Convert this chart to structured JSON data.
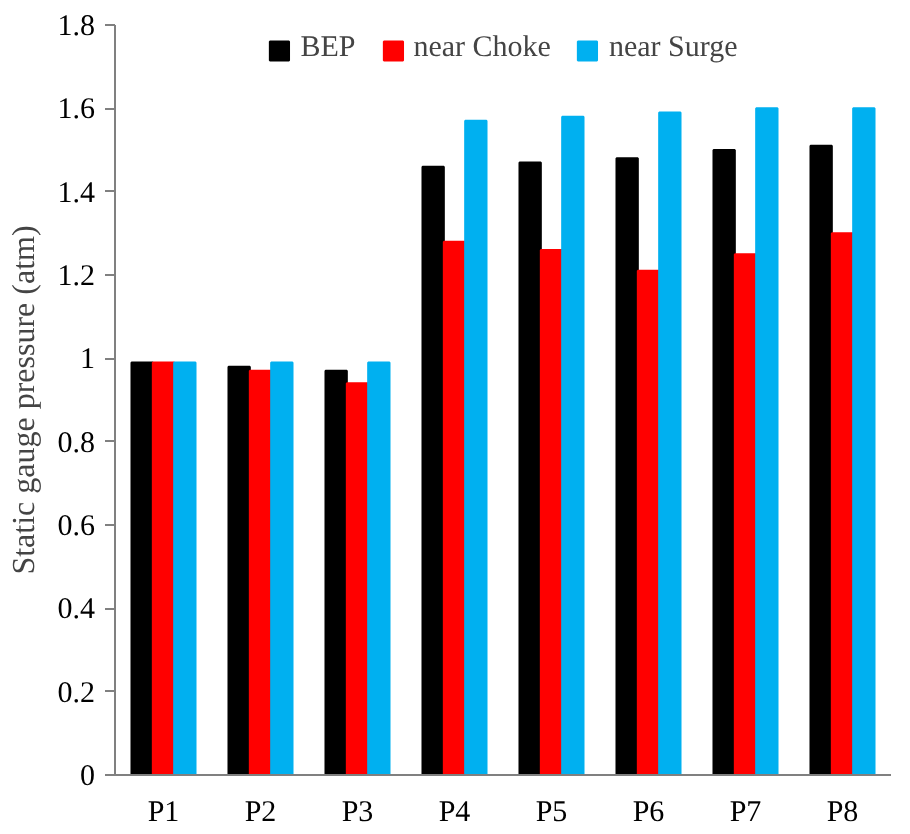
{
  "chart_data": {
    "type": "bar",
    "ylabel": "Static gauge pressure (atm)",
    "categories": [
      "P1",
      "P2",
      "P3",
      "P4",
      "P5",
      "P6",
      "P7",
      "P8"
    ],
    "series": [
      {
        "name": "BEP",
        "color": "#000000",
        "values": [
          0.99,
          0.98,
          0.97,
          1.46,
          1.47,
          1.48,
          1.5,
          1.51
        ]
      },
      {
        "name": "near Choke",
        "color": "#ff0000",
        "values": [
          0.99,
          0.97,
          0.94,
          1.28,
          1.26,
          1.21,
          1.25,
          1.3
        ]
      },
      {
        "name": "near Surge",
        "color": "#00b0f0",
        "values": [
          0.99,
          0.99,
          0.99,
          1.57,
          1.58,
          1.59,
          1.6,
          1.6
        ]
      }
    ],
    "ylim": [
      0,
      1.8
    ],
    "yticks": [
      0,
      0.2,
      0.4,
      0.6,
      0.8,
      1,
      1.2,
      1.4,
      1.6,
      1.8
    ],
    "grid": false,
    "legend": "top"
  }
}
